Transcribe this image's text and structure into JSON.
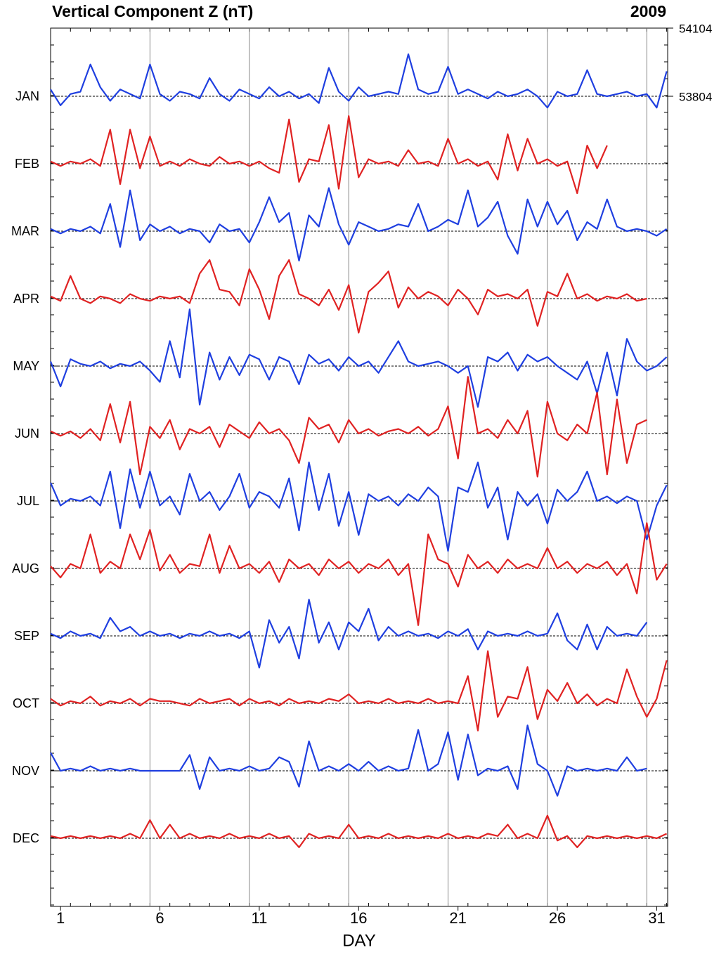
{
  "chart_data": {
    "type": "stacked-line",
    "title": "Vertical Component Z (nT)",
    "year": "2009",
    "xlabel": "DAY",
    "xlim": [
      0,
      31.05
    ],
    "xticks": [
      {
        "value": 0.5,
        "label": "1"
      },
      {
        "value": 5.5,
        "label": "6"
      },
      {
        "value": 10.5,
        "label": "11"
      },
      {
        "value": 15.5,
        "label": "16"
      },
      {
        "value": 20.5,
        "label": "21"
      },
      {
        "value": 25.5,
        "label": "26"
      },
      {
        "value": 30.5,
        "label": "31"
      }
    ],
    "xgrid": [
      5,
      10,
      15,
      20,
      25,
      30
    ],
    "yticks": [
      53804,
      54104
    ],
    "x": [
      0,
      0.5,
      1,
      1.5,
      2,
      2.5,
      3,
      3.5,
      4,
      4.5,
      5,
      5.5,
      6,
      6.5,
      7,
      7.5,
      8,
      8.5,
      9,
      9.5,
      10,
      10.5,
      11,
      11.5,
      12,
      12.5,
      13,
      13.5,
      14,
      14.5,
      15,
      15.5,
      16,
      16.5,
      17,
      17.5,
      18,
      18.5,
      19,
      19.5,
      20,
      20.5,
      21,
      21.5,
      22,
      22.5,
      23,
      23.5,
      24,
      24.5,
      25,
      25.5,
      26,
      26.5,
      27,
      27.5,
      28,
      28.5,
      29,
      29.5,
      30,
      30.5,
      31
    ],
    "series": [
      {
        "name": "JAN",
        "color": "#1f3fe0",
        "values": [
          53834,
          53764,
          53814,
          53824,
          53944,
          53844,
          53784,
          53834,
          53814,
          53794,
          53944,
          53814,
          53784,
          53824,
          53814,
          53794,
          53884,
          53814,
          53784,
          53834,
          53814,
          53794,
          53844,
          53804,
          53824,
          53794,
          53814,
          53774,
          53929,
          53824,
          53784,
          53844,
          53804,
          53814,
          53824,
          53814,
          53989,
          53834,
          53814,
          53824,
          53934,
          53814,
          53834,
          53814,
          53794,
          53824,
          53804,
          53814,
          53834,
          53804,
          53754,
          53824,
          53804,
          53814,
          53919,
          53814,
          53804,
          53814,
          53824,
          53804,
          53814,
          53754,
          53914
        ]
      },
      {
        "name": "FEB",
        "color": "#e02222",
        "values": [
          53814,
          53794,
          53814,
          53804,
          53824,
          53794,
          53954,
          53714,
          53954,
          53784,
          53924,
          53794,
          53814,
          53794,
          53824,
          53804,
          53794,
          53834,
          53804,
          53814,
          53794,
          53814,
          53784,
          53764,
          53999,
          53724,
          53824,
          53814,
          53974,
          53694,
          54014,
          53744,
          53824,
          53804,
          53814,
          53794,
          53864,
          53804,
          53814,
          53794,
          53914,
          53804,
          53824,
          53794,
          53814,
          53734,
          53934,
          53774,
          53914,
          53804,
          53824,
          53794,
          53814,
          53674,
          53884,
          53784,
          53884,
          null,
          null,
          null,
          null,
          null,
          null
        ]
      },
      {
        "name": "MAR",
        "color": "#1f3fe0",
        "values": [
          53814,
          53794,
          53814,
          53804,
          53824,
          53794,
          53924,
          53734,
          53984,
          53764,
          53834,
          53804,
          53824,
          53794,
          53814,
          53804,
          53754,
          53834,
          53804,
          53814,
          53754,
          53844,
          53954,
          53844,
          53884,
          53674,
          53874,
          53824,
          53994,
          53834,
          53744,
          53844,
          53824,
          53804,
          53814,
          53834,
          53824,
          53924,
          53804,
          53824,
          53854,
          53834,
          53984,
          53824,
          53864,
          53934,
          53784,
          53704,
          53944,
          53824,
          53934,
          53834,
          53894,
          53764,
          53844,
          53814,
          53944,
          53824,
          53804,
          53814,
          53804,
          53784,
          53814
        ]
      },
      {
        "name": "APR",
        "color": "#e02222",
        "values": [
          53814,
          53794,
          53904,
          53804,
          53784,
          53814,
          53804,
          53784,
          53824,
          53804,
          53794,
          53814,
          53804,
          53814,
          53784,
          53914,
          53974,
          53844,
          53834,
          53774,
          53934,
          53844,
          53714,
          53904,
          53974,
          53824,
          53804,
          53774,
          53844,
          53754,
          53864,
          53654,
          53834,
          53874,
          53924,
          53764,
          53854,
          53804,
          53834,
          53814,
          53774,
          53844,
          53804,
          53734,
          53844,
          53814,
          53824,
          53804,
          53844,
          53684,
          53834,
          53814,
          53914,
          53804,
          53824,
          53794,
          53814,
          53804,
          53824,
          53794,
          53804,
          null,
          null
        ]
      },
      {
        "name": "MAY",
        "color": "#1f3fe0",
        "values": [
          53824,
          53714,
          53834,
          53814,
          53804,
          53824,
          53794,
          53814,
          53804,
          53824,
          53784,
          53734,
          53914,
          53754,
          54054,
          53634,
          53864,
          53744,
          53844,
          53764,
          53854,
          53834,
          53744,
          53844,
          53824,
          53724,
          53854,
          53814,
          53834,
          53784,
          53844,
          53804,
          53824,
          53774,
          53844,
          53914,
          53824,
          53804,
          53814,
          53824,
          53804,
          53774,
          53804,
          53624,
          53844,
          53824,
          53864,
          53784,
          53854,
          53824,
          53844,
          53804,
          53774,
          53744,
          53824,
          53684,
          53864,
          53674,
          53924,
          53824,
          53784,
          53804,
          53844
        ]
      },
      {
        "name": "JUN",
        "color": "#e02222",
        "values": [
          53814,
          53794,
          53814,
          53784,
          53824,
          53774,
          53934,
          53764,
          53944,
          53624,
          53834,
          53784,
          53864,
          53734,
          53824,
          53804,
          53834,
          53744,
          53844,
          53814,
          53784,
          53854,
          53804,
          53824,
          53774,
          53674,
          53874,
          53824,
          53844,
          53764,
          53864,
          53804,
          53824,
          53794,
          53814,
          53824,
          53804,
          53834,
          53794,
          53824,
          53924,
          53694,
          54054,
          53804,
          53824,
          53784,
          53864,
          53804,
          53904,
          53614,
          53944,
          53804,
          53774,
          53844,
          53804,
          53984,
          53624,
          53954,
          53674,
          53844,
          53864,
          null,
          null
        ]
      },
      {
        "name": "JUL",
        "color": "#1f3fe0",
        "values": [
          53884,
          53784,
          53814,
          53804,
          53824,
          53784,
          53934,
          53684,
          53944,
          53774,
          53934,
          53784,
          53824,
          53744,
          53924,
          53804,
          53844,
          53764,
          53824,
          53924,
          53774,
          53844,
          53824,
          53774,
          53904,
          53674,
          53974,
          53764,
          53924,
          53694,
          53844,
          53654,
          53834,
          53804,
          53824,
          53784,
          53834,
          53804,
          53864,
          53824,
          53584,
          53864,
          53844,
          53974,
          53774,
          53864,
          53634,
          53844,
          53784,
          53834,
          53704,
          53854,
          53804,
          53844,
          53934,
          53804,
          53824,
          53794,
          53824,
          53804,
          53634,
          53784,
          53874
        ]
      },
      {
        "name": "AUG",
        "color": "#e02222",
        "values": [
          53814,
          53764,
          53824,
          53804,
          53954,
          53784,
          53834,
          53804,
          53954,
          53844,
          53974,
          53794,
          53864,
          53784,
          53824,
          53814,
          53954,
          53784,
          53904,
          53804,
          53824,
          53784,
          53834,
          53744,
          53844,
          53804,
          53824,
          53774,
          53844,
          53804,
          53834,
          53784,
          53824,
          53804,
          53844,
          53774,
          53824,
          53554,
          53954,
          53844,
          53824,
          53724,
          53864,
          53804,
          53834,
          53784,
          53844,
          53804,
          53824,
          53804,
          53894,
          53804,
          53834,
          53784,
          53824,
          53804,
          53834,
          53774,
          53824,
          53694,
          54004,
          53754,
          53824
        ]
      },
      {
        "name": "SEP",
        "color": "#1f3fe0",
        "values": [
          53814,
          53794,
          53824,
          53804,
          53814,
          53794,
          53884,
          53824,
          53844,
          53804,
          53824,
          53804,
          53814,
          53794,
          53814,
          53804,
          53824,
          53804,
          53814,
          53794,
          53824,
          53664,
          53874,
          53774,
          53844,
          53704,
          53964,
          53774,
          53864,
          53744,
          53864,
          53824,
          53924,
          53784,
          53844,
          53804,
          53824,
          53804,
          53814,
          53794,
          53824,
          53804,
          53834,
          53744,
          53824,
          53804,
          53814,
          53804,
          53824,
          53804,
          53814,
          53904,
          53784,
          53744,
          53854,
          53744,
          53844,
          53804,
          53814,
          53804,
          53864,
          null,
          null
        ]
      },
      {
        "name": "OCT",
        "color": "#e02222",
        "values": [
          53824,
          53794,
          53814,
          53804,
          53834,
          53794,
          53814,
          53804,
          53824,
          53794,
          53824,
          53814,
          53814,
          53804,
          53794,
          53824,
          53804,
          53814,
          53824,
          53794,
          53824,
          53804,
          53814,
          53794,
          53824,
          53804,
          53814,
          53804,
          53824,
          53814,
          53844,
          53804,
          53814,
          53804,
          53824,
          53804,
          53814,
          53804,
          53824,
          53804,
          53814,
          53804,
          53924,
          53684,
          54034,
          53744,
          53834,
          53824,
          53964,
          53734,
          53864,
          53814,
          53894,
          53804,
          53844,
          53794,
          53824,
          53804,
          53954,
          53834,
          53744,
          53824,
          53994
        ]
      },
      {
        "name": "NOV",
        "color": "#1f3fe0",
        "values": [
          53884,
          53804,
          53814,
          53804,
          53824,
          53804,
          53814,
          53804,
          53814,
          53804,
          53804,
          53804,
          53804,
          53804,
          53874,
          53724,
          53864,
          53804,
          53814,
          53804,
          53824,
          53804,
          53814,
          53864,
          53844,
          53734,
          53934,
          53804,
          53824,
          53804,
          53834,
          53804,
          53844,
          53804,
          53824,
          53804,
          53814,
          53984,
          53804,
          53834,
          53974,
          53764,
          53964,
          53784,
          53814,
          53804,
          53824,
          53724,
          54004,
          53834,
          53804,
          53694,
          53824,
          53804,
          53814,
          53804,
          53814,
          53804,
          53864,
          53804,
          53814,
          null,
          null
        ]
      },
      {
        "name": "DEC",
        "color": "#e02222",
        "values": [
          53814,
          53804,
          53814,
          53804,
          53814,
          53804,
          53814,
          53804,
          53824,
          53804,
          53884,
          53804,
          53864,
          53804,
          53824,
          53804,
          53814,
          53804,
          53824,
          53804,
          53814,
          53804,
          53824,
          53804,
          53814,
          53764,
          53824,
          53804,
          53814,
          53804,
          53864,
          53804,
          53814,
          53804,
          53824,
          53804,
          53814,
          53804,
          53814,
          53804,
          53824,
          53804,
          53814,
          53804,
          53824,
          53814,
          53864,
          53804,
          53824,
          53804,
          53904,
          53794,
          53814,
          53764,
          53814,
          53804,
          53814,
          53804,
          53814,
          53804,
          53814,
          53804,
          53824
        ]
      }
    ]
  }
}
